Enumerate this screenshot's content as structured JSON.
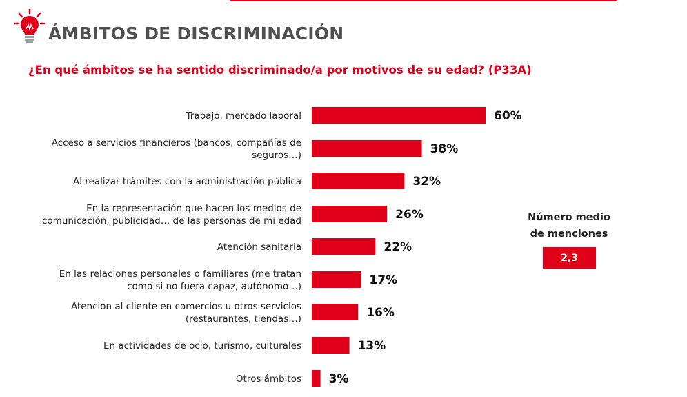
{
  "header": {
    "title": "ÁMBITOS DE DISCRIMINACIÓN",
    "question": "¿En qué ámbitos se ha sentido discriminado/a por motivos de su edad? (P33A)"
  },
  "summary": {
    "mean_label_line1": "Número medio",
    "mean_label_line2": "de menciones",
    "mean_value": "2,3"
  },
  "colors": {
    "bar": "#e0001a",
    "title": "#505050",
    "question": "#d9001b"
  },
  "icons": {
    "logo": "lightbulb-icon"
  },
  "chart_data": {
    "type": "bar",
    "orientation": "horizontal",
    "categories": [
      [
        "Trabajo, mercado laboral"
      ],
      [
        "Acceso a servicios financieros (bancos, compañías de",
        "seguros…)"
      ],
      [
        "Al realizar trámites con la administración pública"
      ],
      [
        "En la representación que hacen los medios de",
        "comunicación, publicidad… de las personas de mi edad"
      ],
      [
        "Atención sanitaria"
      ],
      [
        "En las relaciones personales o familiares (me tratan",
        "como si no fuera capaz, autónomo…)"
      ],
      [
        "Atención al cliente en comercios u otros servicios",
        "(restaurantes, tiendas…)"
      ],
      [
        "En actividades de ocio, turismo, culturales"
      ],
      [
        "Otros ámbitos"
      ]
    ],
    "values": [
      60,
      38,
      32,
      26,
      22,
      17,
      16,
      13,
      3
    ],
    "value_labels": [
      "60%",
      "38%",
      "32%",
      "26%",
      "22%",
      "17%",
      "16%",
      "13%",
      "3%"
    ],
    "unit": "%",
    "xlim": [
      0,
      100
    ],
    "grid": false,
    "legend": "none"
  }
}
